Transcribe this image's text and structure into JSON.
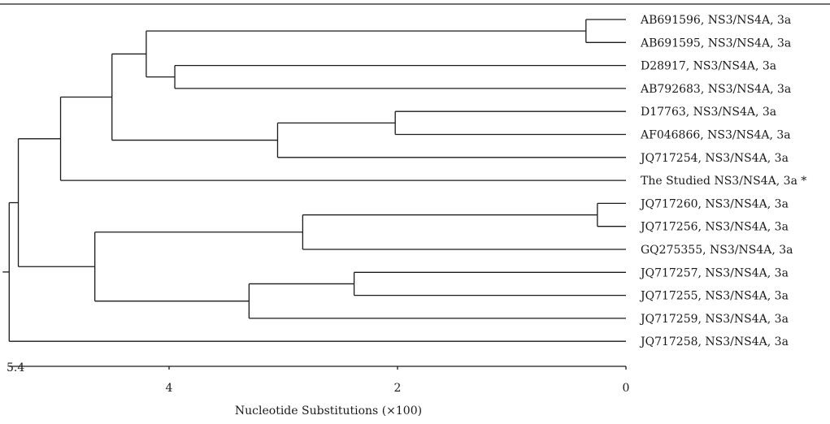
{
  "diagram": {
    "type": "phylogenetic-tree",
    "leaves": [
      "AB691596, NS3/NS4A, 3a",
      "AB691595, NS3/NS4A, 3a",
      "D28917, NS3/NS4A, 3a",
      "AB792683, NS3/NS4A, 3a",
      "D17763, NS3/NS4A, 3a",
      "AF046866, NS3/NS4A, 3a",
      "JQ717254, NS3/NS4A, 3a",
      "The Studied NS3/NS4A, 3a *",
      "JQ717260, NS3/NS4A, 3a",
      "JQ717256, NS3/NS4A, 3a",
      "GQ275355, NS3/NS4A, 3a",
      "JQ717257, NS3/NS4A, 3a",
      "JQ717255, NS3/NS4A, 3a",
      "JQ717259, NS3/NS4A, 3a",
      "JQ717258, NS3/NS4A, 3a"
    ],
    "nodes": [
      {
        "id": "n_ab69",
        "height": 0.35,
        "children": [
          "leaf:0",
          "leaf:1"
        ]
      },
      {
        "id": "n_d289",
        "height": 3.95,
        "children": [
          "leaf:2",
          "leaf:3"
        ]
      },
      {
        "id": "n_a",
        "height": 4.2,
        "children": [
          "node:n_ab69",
          "node:n_d289"
        ]
      },
      {
        "id": "n_d177",
        "height": 2.02,
        "children": [
          "leaf:4",
          "leaf:5"
        ]
      },
      {
        "id": "n_b",
        "height": 3.05,
        "children": [
          "node:n_d177",
          "leaf:6"
        ]
      },
      {
        "id": "n_c",
        "height": 4.5,
        "children": [
          "node:n_a",
          "node:n_b"
        ]
      },
      {
        "id": "n_d",
        "height": 4.95,
        "children": [
          "node:n_c",
          "leaf:7"
        ]
      },
      {
        "id": "n_jq260",
        "height": 0.25,
        "children": [
          "leaf:8",
          "leaf:9"
        ]
      },
      {
        "id": "n_e",
        "height": 2.83,
        "children": [
          "node:n_jq260",
          "leaf:10"
        ]
      },
      {
        "id": "n_jq257",
        "height": 2.38,
        "children": [
          "leaf:11",
          "leaf:12"
        ]
      },
      {
        "id": "n_f",
        "height": 3.3,
        "children": [
          "node:n_jq257",
          "leaf:13"
        ]
      },
      {
        "id": "n_g",
        "height": 4.65,
        "children": [
          "node:n_e",
          "node:n_f"
        ]
      },
      {
        "id": "n_h",
        "height": 5.32,
        "children": [
          "node:n_d",
          "node:n_g"
        ]
      },
      {
        "id": "root",
        "height": 5.4,
        "children": [
          "node:n_h",
          "leaf:14"
        ]
      }
    ],
    "axis": {
      "title": "Nucleotide Substitutions (×100)",
      "ticks": [
        4,
        2,
        0
      ],
      "range": [
        5.4,
        0
      ],
      "start_label": "5.4"
    }
  }
}
